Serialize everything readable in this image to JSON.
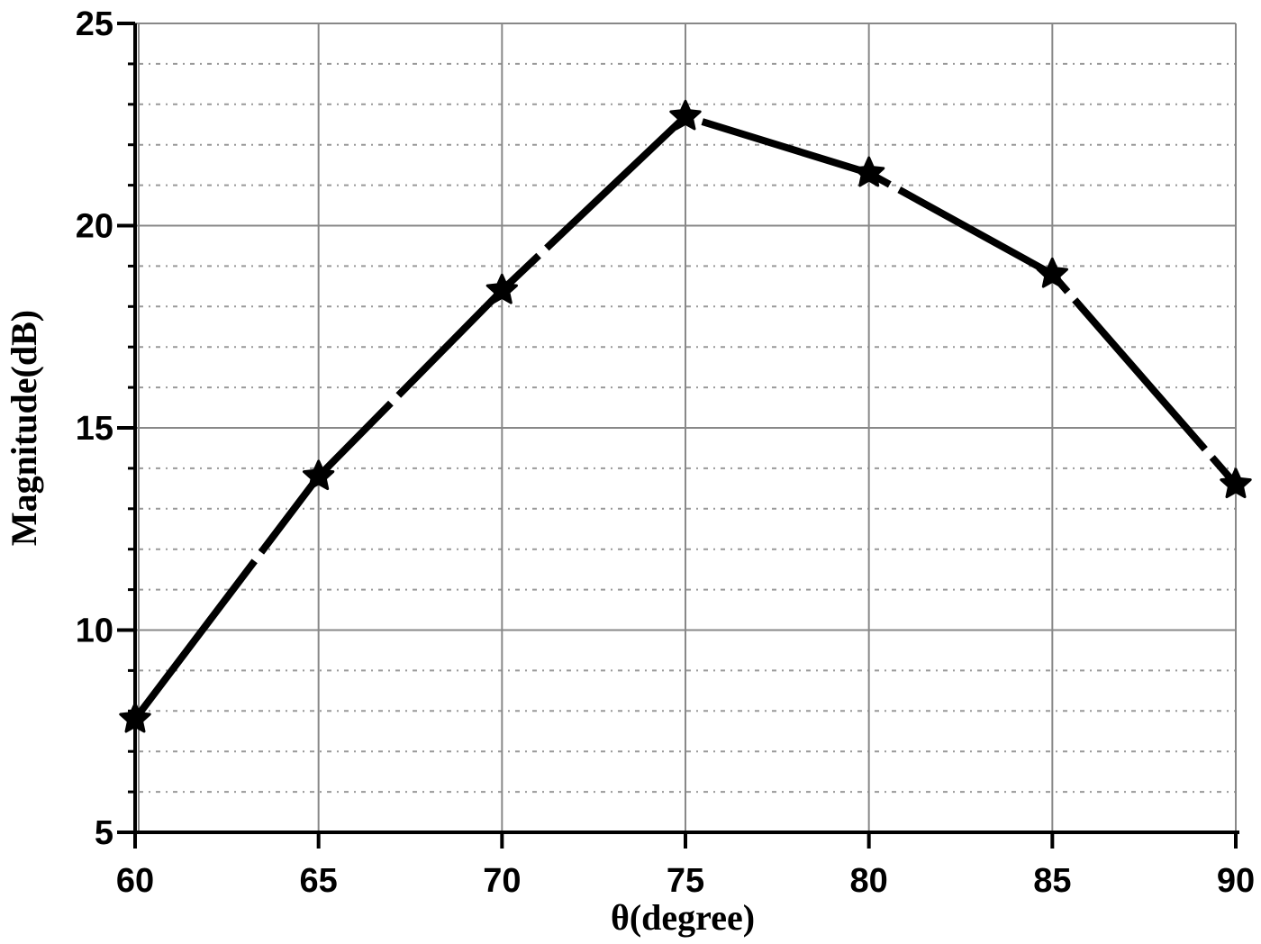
{
  "chart_data": {
    "type": "line",
    "title": "",
    "xlabel": "θ(degree)",
    "ylabel": "Magnitude(dB)",
    "xlim": [
      60,
      90
    ],
    "ylim": [
      5,
      25
    ],
    "x_ticks": [
      60,
      65,
      70,
      75,
      80,
      85,
      90
    ],
    "y_ticks": [
      5,
      10,
      15,
      20,
      25
    ],
    "y_minor_step": 1,
    "grid": {
      "major": true,
      "minor_y": true,
      "major_color": "#888888",
      "minor_style": "dotted"
    },
    "legend": null,
    "series": [
      {
        "name": "Magnitude",
        "marker": "star",
        "line_style": "dashed",
        "color": "#000000",
        "x": [
          60,
          65,
          70,
          75,
          80,
          85,
          90
        ],
        "values": [
          7.8,
          13.8,
          18.4,
          22.7,
          21.3,
          18.8,
          13.6
        ]
      }
    ]
  }
}
